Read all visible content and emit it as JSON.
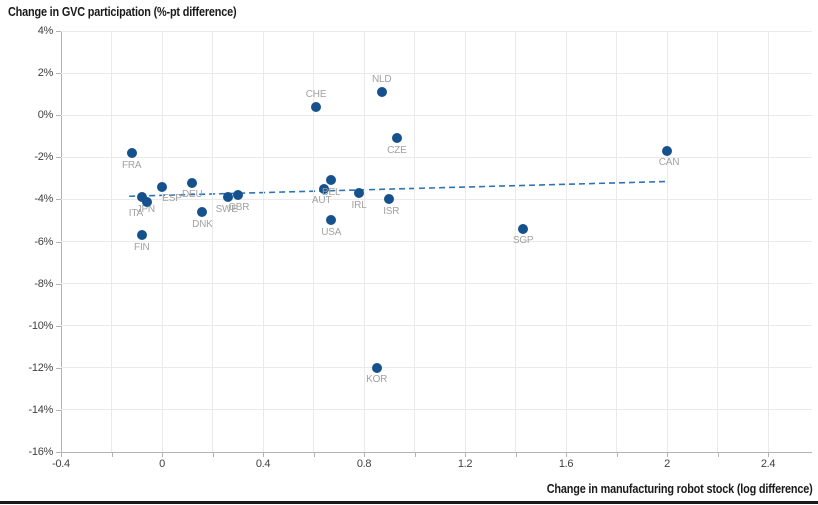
{
  "chart_data": {
    "type": "scatter",
    "ylabel": "Change in GVC participation (%-pt difference)",
    "xlabel": "Change in manufacturing robot stock (log difference)",
    "xlim": [
      -0.4,
      2.574
    ],
    "ylim": [
      -16,
      4
    ],
    "grid": true,
    "legend": "none",
    "x_tick_labels": [
      {
        "v": -0.4,
        "t": "-0.4"
      },
      {
        "v": 0,
        "t": "0"
      },
      {
        "v": 0.4,
        "t": "0.4"
      },
      {
        "v": 0.8,
        "t": "0.8"
      },
      {
        "v": 1.2,
        "t": "1.2"
      },
      {
        "v": 1.6,
        "t": "1.6"
      },
      {
        "v": 2,
        "t": "2"
      },
      {
        "v": 2.4,
        "t": "2.4"
      }
    ],
    "x_minor_tick_step": 0.2,
    "y_tick_labels": [
      {
        "v": 4,
        "t": "4%"
      },
      {
        "v": 2,
        "t": "2%"
      },
      {
        "v": 0,
        "t": "0%"
      },
      {
        "v": -2,
        "t": "-2%"
      },
      {
        "v": -4,
        "t": "-4%"
      },
      {
        "v": -6,
        "t": "-6%"
      },
      {
        "v": -8,
        "t": "-8%"
      },
      {
        "v": -10,
        "t": "-10%"
      },
      {
        "v": -12,
        "t": "-12%"
      },
      {
        "v": -14,
        "t": "-14%"
      },
      {
        "v": -16,
        "t": "-16%"
      }
    ],
    "points": [
      {
        "label": "FRA",
        "x": -0.12,
        "y": -1.8,
        "side": "below",
        "dx": 0
      },
      {
        "label": "JPN",
        "x": -0.08,
        "y": -3.9,
        "side": "below",
        "dx": 4
      },
      {
        "label": "ITA",
        "x": -0.06,
        "y": -4.1,
        "side": "below",
        "dx": -11
      },
      {
        "label": "FIN",
        "x": -0.08,
        "y": -5.7,
        "side": "below",
        "dx": 0
      },
      {
        "label": "ESP",
        "x": 0.0,
        "y": -3.4,
        "side": "below",
        "dx": 10
      },
      {
        "label": "DEU",
        "x": 0.12,
        "y": -3.2,
        "side": "below",
        "dx": 0
      },
      {
        "label": "DNK",
        "x": 0.16,
        "y": -4.6,
        "side": "below",
        "dx": 0
      },
      {
        "label": "SWE",
        "x": 0.26,
        "y": -3.9,
        "side": "below",
        "dx": -1
      },
      {
        "label": "GBR",
        "x": 0.3,
        "y": -3.8,
        "side": "below",
        "dx": 1
      },
      {
        "label": "CHE",
        "x": 0.61,
        "y": 0.4,
        "side": "above",
        "dx": 0
      },
      {
        "label": "NLD",
        "x": 0.87,
        "y": 1.1,
        "side": "above",
        "dx": 0
      },
      {
        "label": "CZE",
        "x": 0.93,
        "y": -1.1,
        "side": "below",
        "dx": 0
      },
      {
        "label": "AUT",
        "x": 0.64,
        "y": -3.5,
        "side": "below",
        "dx": -2
      },
      {
        "label": "BEL",
        "x": 0.67,
        "y": -3.1,
        "side": "below",
        "dx": 0
      },
      {
        "label": "IRL",
        "x": 0.78,
        "y": -3.7,
        "side": "below",
        "dx": 0
      },
      {
        "label": "ISR",
        "x": 0.9,
        "y": -4.0,
        "side": "below",
        "dx": 2
      },
      {
        "label": "USA",
        "x": 0.67,
        "y": -5.0,
        "side": "below",
        "dx": 0
      },
      {
        "label": "KOR",
        "x": 0.85,
        "y": -12.0,
        "side": "below",
        "dx": 0
      },
      {
        "label": "SGP",
        "x": 1.43,
        "y": -5.4,
        "side": "below",
        "dx": 0
      },
      {
        "label": "CAN",
        "x": 2.0,
        "y": -1.7,
        "side": "below",
        "dx": 2
      }
    ],
    "trend": {
      "x1": -0.13,
      "y1": -3.85,
      "x2": 2.0,
      "y2": -3.15,
      "style": "dashed"
    },
    "colors": {
      "point": "#15518c",
      "trend": "#2e74b5",
      "grid": "#eaeaea",
      "axis": "#b3b3b3",
      "tick_text": "#3f3f3f",
      "point_label": "#a2a2a2",
      "title_text": "#1a1a1a"
    }
  }
}
